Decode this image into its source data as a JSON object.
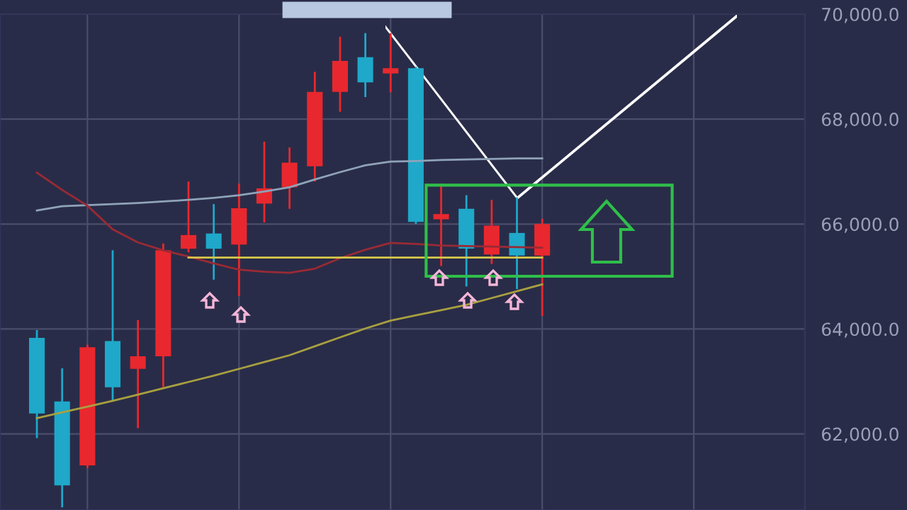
{
  "chart_data": {
    "type": "candlestick",
    "categories": [
      null,
      null,
      null,
      null,
      null,
      null,
      null,
      null,
      null,
      null,
      null,
      null,
      null,
      null,
      null,
      null,
      null,
      null,
      null,
      null,
      null
    ],
    "ohlc": [
      [
        63830,
        63980,
        61920,
        62390
      ],
      [
        62620,
        63250,
        60600,
        61020
      ],
      [
        61400,
        63700,
        61350,
        63650
      ],
      [
        63770,
        65500,
        62630,
        62890
      ],
      [
        63240,
        64170,
        62110,
        63480
      ],
      [
        63480,
        65630,
        62890,
        65500
      ],
      [
        65530,
        66810,
        65460,
        65790
      ],
      [
        65820,
        66380,
        64940,
        65530
      ],
      [
        65610,
        66770,
        64630,
        66300
      ],
      [
        66390,
        67570,
        66030,
        66680
      ],
      [
        66700,
        67460,
        66290,
        67170
      ],
      [
        67100,
        68900,
        66810,
        68520
      ],
      [
        68520,
        69570,
        68140,
        69110
      ],
      [
        69180,
        69640,
        68420,
        68700
      ],
      [
        68870,
        69640,
        68510,
        68970
      ],
      [
        68970,
        69000,
        66000,
        66040
      ],
      [
        66090,
        66770,
        65200,
        66190
      ],
      [
        66290,
        66550,
        64810,
        65530
      ],
      [
        65420,
        66460,
        65240,
        65970
      ],
      [
        65830,
        66510,
        64760,
        65400
      ],
      [
        65400,
        66100,
        64250,
        66000
      ]
    ],
    "colors": [
      "#1fa8c9",
      "#1fa8c9",
      "#e8282e",
      "#1fa8c9",
      "#e8282e",
      "#e8282e",
      "#e8282e",
      "#1fa8c9",
      "#e8282e",
      "#e8282e",
      "#e8282e",
      "#e8282e",
      "#e8282e",
      "#1fa8c9",
      "#e8282e",
      "#1fa8c9",
      "#e8282e",
      "#1fa8c9",
      "#e8282e",
      "#1fa8c9",
      "#e8282e"
    ],
    "series": [
      {
        "type": "line",
        "color": "#8fa3b8",
        "values": [
          66260,
          66340,
          66360,
          66380,
          66400,
          66430,
          66460,
          66500,
          66550,
          66620,
          66700,
          66850,
          66990,
          67120,
          67190,
          67200,
          67220,
          67230,
          67240,
          67250,
          67250
        ]
      },
      {
        "type": "line",
        "color": "#9a2a35",
        "values": [
          66980,
          66650,
          66350,
          65900,
          65650,
          65500,
          65380,
          65250,
          65130,
          65090,
          65070,
          65150,
          65350,
          65510,
          65640,
          65620,
          65590,
          65580,
          65570,
          65560,
          65550
        ]
      },
      {
        "type": "line",
        "color": "#a8a040",
        "values": [
          62300,
          62410,
          62520,
          62630,
          62750,
          62870,
          62990,
          63110,
          63240,
          63370,
          63500,
          63670,
          63840,
          64010,
          64160,
          64260,
          64360,
          64460,
          64590,
          64720,
          64850
        ]
      },
      {
        "type": "line",
        "color": "#d9c84a",
        "values": [
          null,
          null,
          null,
          null,
          null,
          null,
          65360,
          65360,
          65360,
          65360,
          65360,
          65360,
          65360,
          65360,
          65360,
          65360,
          65360,
          65360,
          65360,
          65360,
          65360
        ]
      }
    ],
    "ylim": [
      60550,
      70000
    ],
    "yticks": [
      {
        "value": 62000,
        "label": "62,000.0"
      },
      {
        "value": 64000,
        "label": "64,000.0"
      },
      {
        "value": 66000,
        "label": "66,000.0"
      },
      {
        "value": 68000,
        "label": "68,000.0"
      },
      {
        "value": 70000,
        "label": "70,000.0"
      }
    ],
    "tick_labels": "y",
    "grid": true
  }
}
